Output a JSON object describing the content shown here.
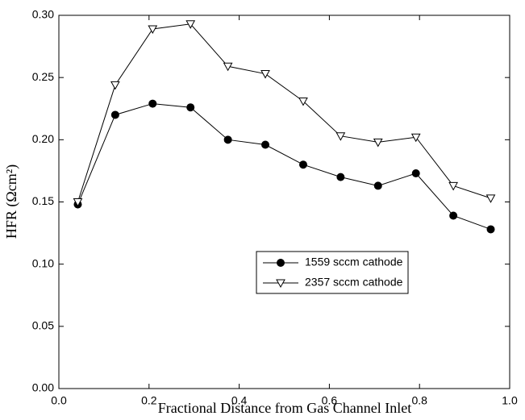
{
  "chart_data": {
    "type": "line",
    "xlabel": "Fractional Distance from Gas Channel Inlet",
    "ylabel": "HFR (Ωcm²)",
    "x": [
      0.042,
      0.125,
      0.208,
      0.292,
      0.375,
      0.458,
      0.542,
      0.625,
      0.708,
      0.792,
      0.875,
      0.958
    ],
    "series": [
      {
        "name": "1559 sccm cathode",
        "color": "#000000",
        "marker": "circle",
        "values": [
          0.148,
          0.22,
          0.229,
          0.226,
          0.2,
          0.196,
          0.18,
          0.17,
          0.163,
          0.173,
          0.139,
          0.128
        ]
      },
      {
        "name": "2357 sccm cathode",
        "color": "#000000",
        "marker": "triangle-down",
        "values": [
          0.15,
          0.244,
          0.289,
          0.293,
          0.259,
          0.253,
          0.231,
          0.203,
          0.198,
          0.202,
          0.163,
          0.153
        ]
      }
    ],
    "xlim": [
      0,
      1
    ],
    "xticks": [
      {
        "value": 0,
        "label": "0.0"
      },
      {
        "value": 0.2,
        "label": "0.2"
      },
      {
        "value": 0.4,
        "label": "0.4"
      },
      {
        "value": 0.6,
        "label": "0.6"
      },
      {
        "value": 0.8,
        "label": "0.8"
      },
      {
        "value": 1,
        "label": "1.0"
      }
    ],
    "ylim": [
      0,
      0.3
    ],
    "yticks": [
      {
        "value": 0,
        "label": "0.00"
      },
      {
        "value": 0.05,
        "label": "0.05"
      },
      {
        "value": 0.1,
        "label": "0.10"
      },
      {
        "value": 0.15,
        "label": "0.15"
      },
      {
        "value": 0.2,
        "label": "0.20"
      },
      {
        "value": 0.25,
        "label": "0.25"
      },
      {
        "value": 0.3,
        "label": "0.30"
      }
    ],
    "legend": "center-right"
  }
}
